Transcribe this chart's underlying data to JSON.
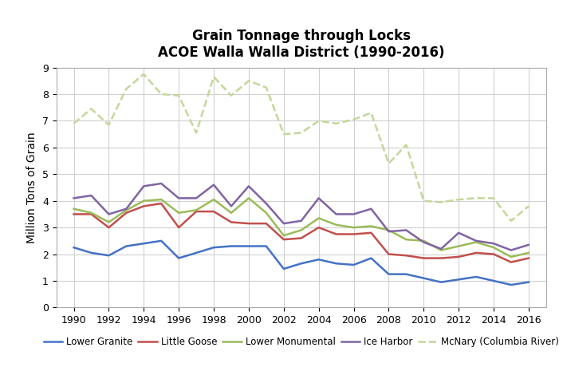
{
  "title": "Grain Tonnage through Locks",
  "subtitle": "ACOE Walla Walla District (1990-2016)",
  "ylabel": "Million Tons of Grain",
  "years": [
    1990,
    1991,
    1992,
    1993,
    1994,
    1995,
    1996,
    1997,
    1998,
    1999,
    2000,
    2001,
    2002,
    2003,
    2004,
    2005,
    2006,
    2007,
    2008,
    2009,
    2010,
    2011,
    2012,
    2013,
    2014,
    2015,
    2016
  ],
  "series": {
    "Lower Granite": [
      2.25,
      2.05,
      1.95,
      2.3,
      2.4,
      2.5,
      1.85,
      2.05,
      2.25,
      2.3,
      2.3,
      2.3,
      1.45,
      1.65,
      1.8,
      1.65,
      1.6,
      1.85,
      1.25,
      1.25,
      1.1,
      0.95,
      1.05,
      1.15,
      1.0,
      0.85,
      0.95
    ],
    "Little Goose": [
      3.5,
      3.5,
      3.0,
      3.55,
      3.8,
      3.9,
      3.0,
      3.6,
      3.6,
      3.2,
      3.15,
      3.15,
      2.55,
      2.6,
      3.0,
      2.75,
      2.75,
      2.8,
      2.0,
      1.95,
      1.85,
      1.85,
      1.9,
      2.05,
      2.0,
      1.7,
      1.85
    ],
    "Lower Monumental": [
      3.7,
      3.55,
      3.2,
      3.65,
      4.0,
      4.05,
      3.55,
      3.65,
      4.05,
      3.55,
      4.1,
      3.55,
      2.7,
      2.9,
      3.35,
      3.1,
      3.0,
      3.05,
      2.9,
      2.55,
      2.5,
      2.15,
      2.3,
      2.45,
      2.25,
      1.9,
      2.05
    ],
    "Ice Harbor": [
      4.1,
      4.2,
      3.5,
      3.7,
      4.55,
      4.65,
      4.1,
      4.1,
      4.6,
      3.8,
      4.55,
      3.9,
      3.15,
      3.25,
      4.1,
      3.5,
      3.5,
      3.7,
      2.85,
      2.9,
      2.45,
      2.2,
      2.8,
      2.5,
      2.4,
      2.15,
      2.35
    ],
    "McNary (Columbia River)": [
      6.9,
      7.45,
      6.85,
      8.2,
      8.75,
      8.0,
      7.95,
      6.55,
      8.65,
      7.95,
      8.5,
      8.25,
      6.5,
      6.55,
      7.0,
      6.9,
      7.05,
      7.3,
      5.4,
      6.1,
      4.0,
      3.95,
      4.05,
      4.1,
      4.1,
      3.25,
      3.8
    ]
  },
  "colors": {
    "Lower Granite": "#4472C4",
    "Little Goose": "#C0504D",
    "Lower Monumental": "#9BBB59",
    "Ice Harbor": "#8064A2",
    "McNary (Columbia River)": "#C4D79B"
  },
  "linestyles": {
    "Lower Granite": "-",
    "Little Goose": "-",
    "Lower Monumental": "-",
    "Ice Harbor": "-",
    "McNary (Columbia River)": "--"
  },
  "ylim": [
    0,
    9
  ],
  "yticks": [
    0,
    1,
    2,
    3,
    4,
    5,
    6,
    7,
    8,
    9
  ],
  "xticks": [
    1990,
    1992,
    1994,
    1996,
    1998,
    2000,
    2002,
    2004,
    2006,
    2008,
    2010,
    2012,
    2014,
    2016
  ],
  "background_color": "#ffffff",
  "title_fontsize": 12,
  "subtitle_fontsize": 11,
  "legend_fontsize": 8.5,
  "axis_label_fontsize": 10,
  "tick_fontsize": 9
}
